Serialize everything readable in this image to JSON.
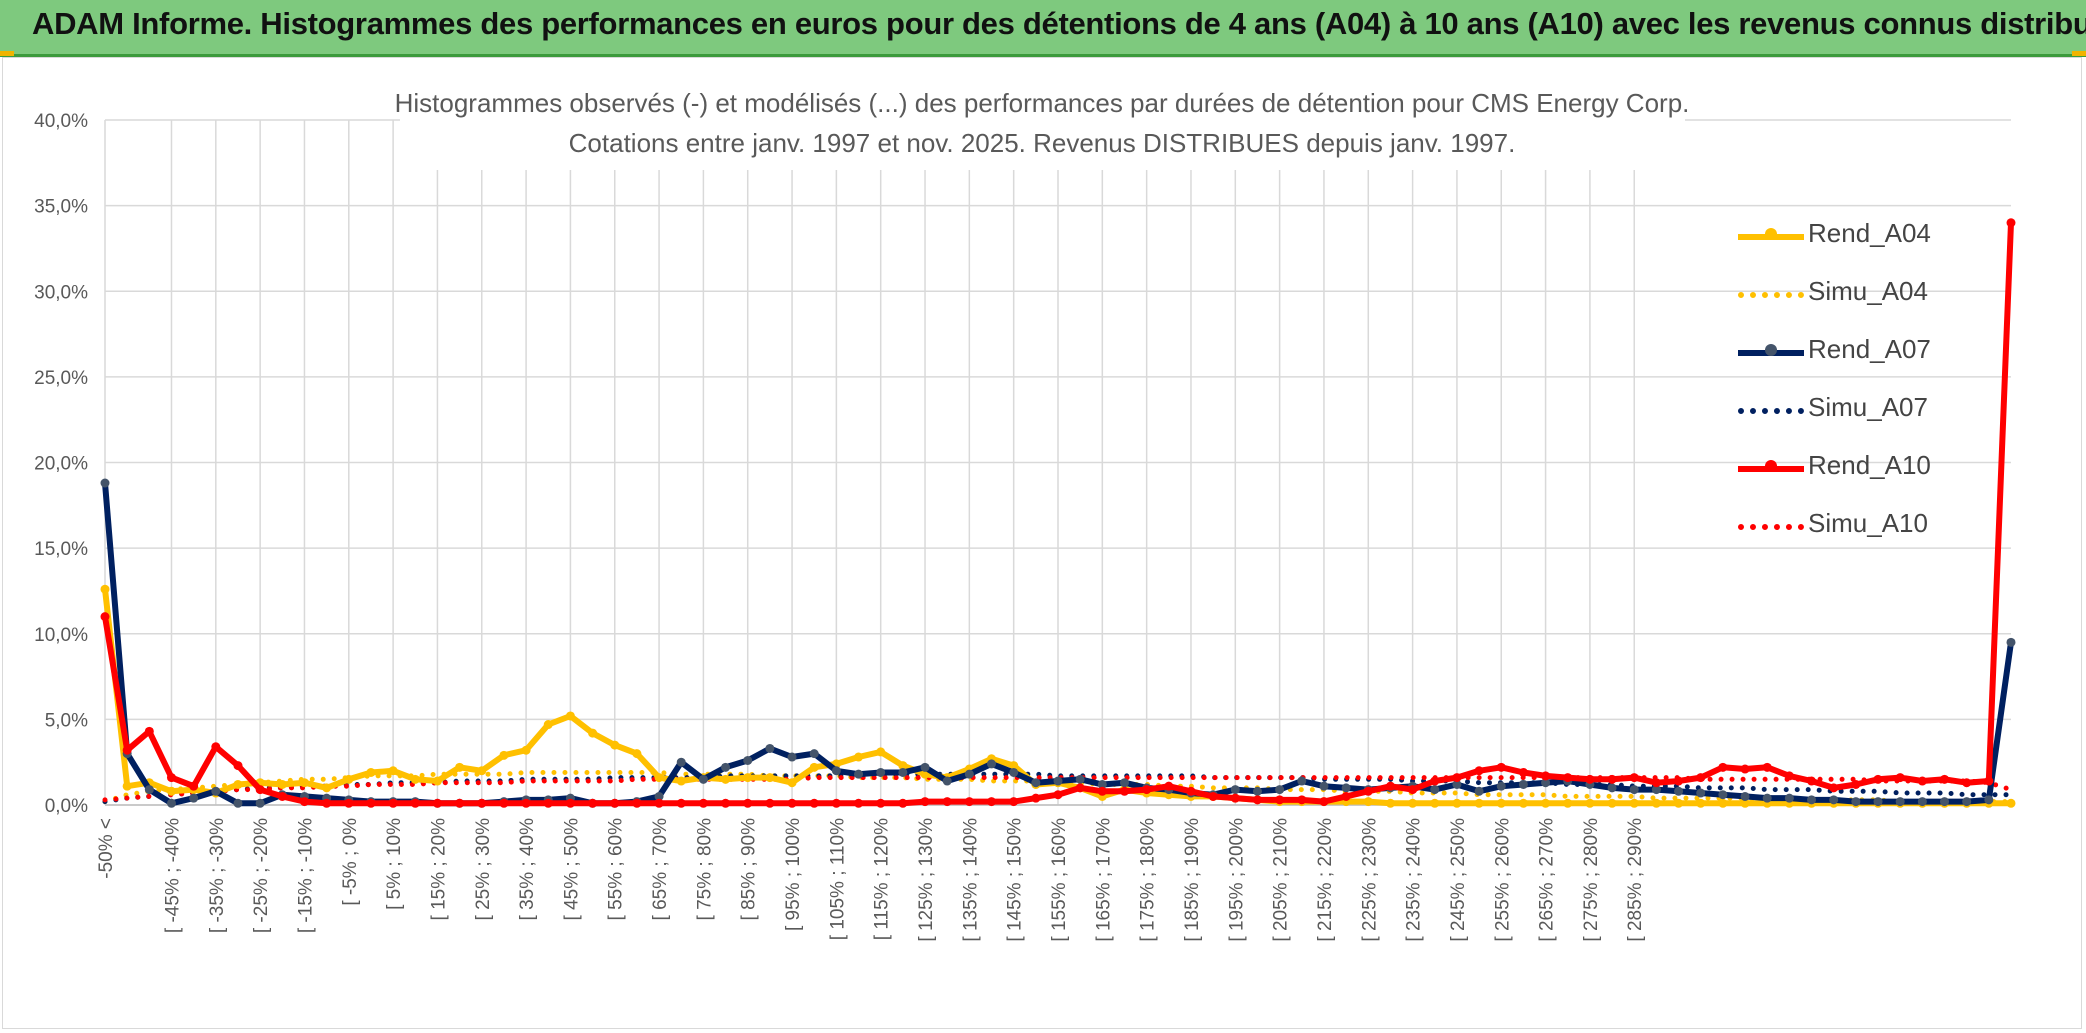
{
  "banner": {
    "title": "ADAM Informe. Histogrammes des performances en euros pour des détentions de 4 ans (A04) à 10 ans (A10) avec les revenus connus distribués"
  },
  "colors": {
    "banner_bg": "#7ec97e",
    "rend_a04": "#ffc000",
    "rend_a07": "#002060",
    "rend_a10": "#ff0000",
    "marker_a07": "#44546a"
  },
  "chart_data": {
    "type": "line",
    "title": "Histogrammes observés (-) et modélisés (...) des performances par durées de détention pour CMS Energy Corp.",
    "subtitle": "Cotations entre janv. 1997 et nov. 2025. Revenus DISTRIBUES depuis janv. 1997.",
    "xlabel": "",
    "ylabel": "",
    "ylim": [
      0,
      40
    ],
    "yticks": [
      "0,0%",
      "5,0%",
      "10,0%",
      "15,0%",
      "20,0%",
      "25,0%",
      "30,0%",
      "35,0%",
      "40,0%"
    ],
    "grid": true,
    "legend_position": "right",
    "category_labels": [
      "-50% <",
      "[ -45% ; -40%",
      "[ -35% ; -30%",
      "[ -25% ; -20%",
      "[ -15% ; -10%",
      "[ -5% ; 0%",
      "[ 5% ; 10%",
      "[ 15% ; 20%",
      "[ 25% ; 30%",
      "[ 35% ; 40%",
      "[ 45% ; 50%",
      "[ 55% ; 60%",
      "[ 65% ; 70%",
      "[ 75% ; 80%",
      "[ 85% ; 90%",
      "[ 95% ; 100%",
      "[ 105% ; 110%",
      "[ 115% ; 120%",
      "[ 125% ; 130%",
      "[ 135% ; 140%",
      "[ 145% ; 150%",
      "[ 155% ; 160%",
      "[ 165% ; 170%",
      "[ 175% ; 180%",
      "[ 185% ; 190%",
      "[ 195% ; 200%",
      "[ 205% ; 210%",
      "[ 215% ; 220%",
      "[ 225% ; 230%",
      "[ 235% ; 240%",
      "[ 245% ; 250%",
      "[ 255% ; 260%",
      "[ 265% ; 270%",
      "[ 275% ; 280%",
      "[ 285% ; 290%"
    ],
    "series": [
      {
        "name": "Rend_A04",
        "style": "solid",
        "color": "#ffc000",
        "values": [
          12.6,
          1.1,
          1.3,
          0.8,
          0.9,
          0.7,
          1.2,
          1.3,
          1.2,
          1.3,
          1.0,
          1.5,
          1.9,
          2.0,
          1.5,
          1.4,
          2.2,
          2.0,
          2.9,
          3.2,
          4.7,
          5.2,
          4.2,
          3.5,
          3.0,
          1.6,
          1.4,
          1.6,
          1.5,
          1.6,
          1.6,
          1.3,
          2.2,
          2.4,
          2.8,
          3.1,
          2.3,
          1.8,
          1.6,
          2.1,
          2.7,
          2.3,
          1.2,
          1.3,
          1.0,
          0.5,
          0.9,
          0.7,
          0.6,
          0.5,
          0.5,
          0.4,
          0.3,
          0.2,
          0.2,
          0.2,
          0.2,
          0.2,
          0.1,
          0.1,
          0.1,
          0.1,
          0.1,
          0.1,
          0.1,
          0.1,
          0.1,
          0.1,
          0.1,
          0.1,
          0.1,
          0.1,
          0.1,
          0.1,
          0.1,
          0.1,
          0.1,
          0.1,
          0.1,
          0.1,
          0.1,
          0.1,
          0.1,
          0.1,
          0.1,
          0.1,
          0.1
        ]
      },
      {
        "name": "Simu_A04",
        "style": "dotted",
        "color": "#ffc000",
        "values": [
          0.2,
          0.6,
          0.8,
          0.9,
          1.0,
          1.1,
          1.2,
          1.3,
          1.4,
          1.5,
          1.5,
          1.6,
          1.7,
          1.7,
          1.7,
          1.8,
          1.8,
          1.8,
          1.8,
          1.9,
          1.9,
          1.9,
          1.9,
          1.9,
          1.9,
          1.9,
          1.8,
          1.8,
          1.8,
          1.8,
          1.7,
          1.7,
          1.7,
          1.7,
          1.6,
          1.6,
          1.6,
          1.5,
          1.5,
          1.5,
          1.4,
          1.4,
          1.4,
          1.3,
          1.3,
          1.2,
          1.2,
          1.2,
          1.1,
          1.1,
          1.0,
          1.0,
          1.0,
          0.9,
          0.9,
          0.9,
          0.8,
          0.8,
          0.8,
          0.7,
          0.7,
          0.7,
          0.6,
          0.6,
          0.6,
          0.6,
          0.5,
          0.5,
          0.5,
          0.5,
          0.4,
          0.4,
          0.4,
          0.4,
          0.4,
          0.3,
          0.3,
          0.3,
          0.3,
          0.3,
          0.3,
          0.2,
          0.2,
          0.2,
          0.2,
          0.2,
          0.2
        ]
      },
      {
        "name": "Rend_A07",
        "style": "solid",
        "color": "#002060",
        "values": [
          18.8,
          3.0,
          0.9,
          0.1,
          0.4,
          0.8,
          0.1,
          0.1,
          0.6,
          0.5,
          0.4,
          0.3,
          0.2,
          0.2,
          0.2,
          0.1,
          0.1,
          0.1,
          0.2,
          0.3,
          0.3,
          0.4,
          0.1,
          0.1,
          0.2,
          0.5,
          2.5,
          1.5,
          2.2,
          2.6,
          3.3,
          2.8,
          3.0,
          2.0,
          1.8,
          1.9,
          1.9,
          2.2,
          1.4,
          1.8,
          2.4,
          1.9,
          1.3,
          1.4,
          1.5,
          1.2,
          1.3,
          1.0,
          0.9,
          0.7,
          0.6,
          0.9,
          0.8,
          0.9,
          1.4,
          1.1,
          1.0,
          0.9,
          1.0,
          1.1,
          0.9,
          1.2,
          0.8,
          1.1,
          1.2,
          1.3,
          1.4,
          1.2,
          1.0,
          0.9,
          0.9,
          0.8,
          0.7,
          0.6,
          0.5,
          0.4,
          0.4,
          0.3,
          0.3,
          0.2,
          0.2,
          0.2,
          0.2,
          0.2,
          0.2,
          0.3,
          9.5
        ]
      },
      {
        "name": "Simu_A07",
        "style": "dotted",
        "color": "#002060",
        "values": [
          0.2,
          0.4,
          0.5,
          0.6,
          0.7,
          0.8,
          0.9,
          1.0,
          1.0,
          1.1,
          1.1,
          1.2,
          1.2,
          1.3,
          1.3,
          1.3,
          1.4,
          1.4,
          1.4,
          1.5,
          1.5,
          1.5,
          1.5,
          1.6,
          1.6,
          1.6,
          1.6,
          1.6,
          1.7,
          1.7,
          1.7,
          1.7,
          1.7,
          1.7,
          1.7,
          1.8,
          1.8,
          1.8,
          1.8,
          1.8,
          1.8,
          1.8,
          1.8,
          1.7,
          1.7,
          1.7,
          1.7,
          1.7,
          1.7,
          1.7,
          1.6,
          1.6,
          1.6,
          1.6,
          1.6,
          1.5,
          1.5,
          1.5,
          1.5,
          1.4,
          1.4,
          1.4,
          1.3,
          1.3,
          1.3,
          1.3,
          1.2,
          1.2,
          1.2,
          1.1,
          1.1,
          1.1,
          1.0,
          1.0,
          1.0,
          0.9,
          0.9,
          0.9,
          0.8,
          0.8,
          0.8,
          0.7,
          0.7,
          0.7,
          0.6,
          0.6,
          0.6
        ]
      },
      {
        "name": "Rend_A10",
        "style": "solid",
        "color": "#ff0000",
        "values": [
          11.0,
          3.2,
          4.3,
          1.6,
          1.1,
          3.4,
          2.3,
          0.9,
          0.5,
          0.2,
          0.1,
          0.1,
          0.1,
          0.1,
          0.1,
          0.1,
          0.1,
          0.1,
          0.1,
          0.1,
          0.1,
          0.1,
          0.1,
          0.1,
          0.1,
          0.1,
          0.1,
          0.1,
          0.1,
          0.1,
          0.1,
          0.1,
          0.1,
          0.1,
          0.1,
          0.1,
          0.1,
          0.2,
          0.2,
          0.2,
          0.2,
          0.2,
          0.4,
          0.6,
          1.0,
          0.8,
          0.8,
          0.9,
          1.1,
          0.8,
          0.5,
          0.4,
          0.3,
          0.3,
          0.3,
          0.2,
          0.5,
          0.8,
          1.1,
          0.9,
          1.4,
          1.6,
          2.0,
          2.2,
          1.9,
          1.7,
          1.6,
          1.5,
          1.5,
          1.6,
          1.3,
          1.4,
          1.6,
          2.2,
          2.1,
          2.2,
          1.7,
          1.4,
          1.0,
          1.2,
          1.5,
          1.6,
          1.4,
          1.5,
          1.3,
          1.4,
          34.0
        ]
      },
      {
        "name": "Simu_A10",
        "style": "dotted",
        "color": "#ff0000",
        "values": [
          0.3,
          0.4,
          0.5,
          0.6,
          0.7,
          0.8,
          0.9,
          0.9,
          1.0,
          1.0,
          1.1,
          1.1,
          1.2,
          1.2,
          1.2,
          1.3,
          1.3,
          1.3,
          1.3,
          1.4,
          1.4,
          1.4,
          1.4,
          1.4,
          1.5,
          1.5,
          1.5,
          1.5,
          1.5,
          1.5,
          1.5,
          1.5,
          1.6,
          1.6,
          1.6,
          1.6,
          1.6,
          1.6,
          1.6,
          1.6,
          1.6,
          1.6,
          1.6,
          1.6,
          1.6,
          1.6,
          1.6,
          1.6,
          1.6,
          1.6,
          1.6,
          1.6,
          1.6,
          1.6,
          1.6,
          1.6,
          1.6,
          1.6,
          1.6,
          1.6,
          1.6,
          1.6,
          1.6,
          1.6,
          1.6,
          1.6,
          1.6,
          1.6,
          1.6,
          1.6,
          1.6,
          1.6,
          1.5,
          1.5,
          1.5,
          1.5,
          1.5,
          1.5,
          1.5,
          1.5,
          1.4,
          1.4,
          1.4,
          1.4,
          1.4,
          1.3,
          0.9
        ]
      }
    ]
  }
}
